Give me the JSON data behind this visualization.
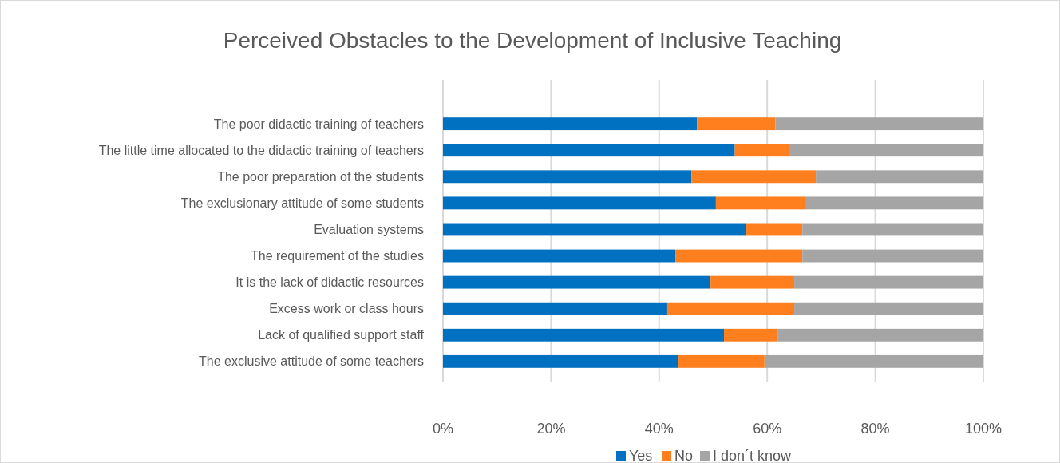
{
  "chart_data": {
    "type": "bar",
    "orientation": "horizontal",
    "stacked": true,
    "title": "Perceived Obstacles to the Development of Inclusive Teaching",
    "categories": [
      "The poor didactic training of teachers",
      "The little time allocated to the didactic training of teachers",
      "The poor preparation of the students",
      "The exclusionary attitude of some students",
      "Evaluation systems",
      "The requirement of the studies",
      "It is the lack of didactic resources",
      "Excess work or class hours",
      "Lack of qualified support staff",
      "The exclusive attitude of some teachers"
    ],
    "series": [
      {
        "name": "Yes",
        "color": "#0070c0",
        "values": [
          47,
          54,
          46,
          50.5,
          56,
          43,
          49.5,
          41.5,
          52,
          43.5
        ]
      },
      {
        "name": "No",
        "color": "#ff7f1f",
        "values": [
          14.5,
          10,
          23,
          16.5,
          10.5,
          23.5,
          15.5,
          23.5,
          10,
          16
        ]
      },
      {
        "name": "I don´t know",
        "color": "#a5a5a5",
        "values": [
          38.5,
          36,
          31,
          33,
          33.5,
          33.5,
          35,
          35,
          38,
          40.5
        ]
      }
    ],
    "xlim": [
      0,
      100
    ],
    "xticks": [
      {
        "value": 0,
        "label": "0%"
      },
      {
        "value": 20,
        "label": "20%"
      },
      {
        "value": 40,
        "label": "40%"
      },
      {
        "value": 60,
        "label": "60%"
      },
      {
        "value": 80,
        "label": "80%"
      },
      {
        "value": 100,
        "label": "100%"
      }
    ],
    "grid": "x",
    "legend": "bottom"
  }
}
